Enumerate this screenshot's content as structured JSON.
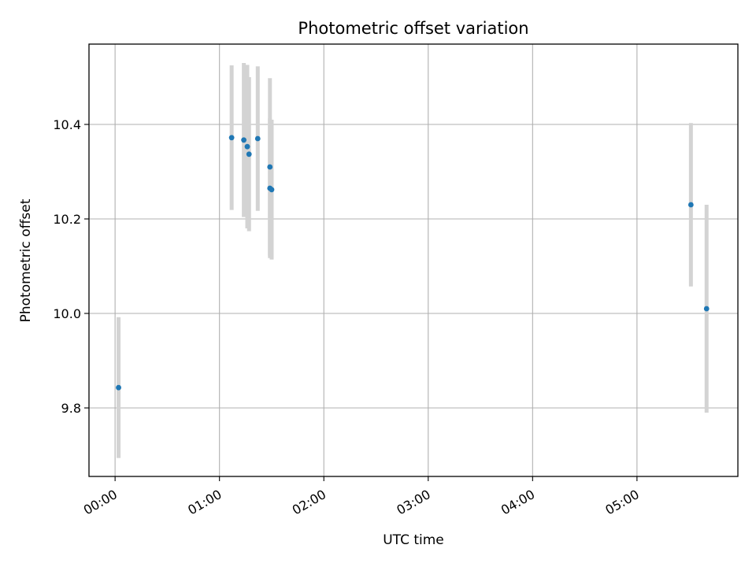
{
  "chart_data": {
    "type": "scatter",
    "title": "Photometric offset variation",
    "xlabel": "UTC time",
    "ylabel": "Photometric offset",
    "x_unit": "UTC time (HH:MM)",
    "xlim": [
      "23:45",
      "05:58"
    ],
    "ylim": [
      9.655,
      10.57
    ],
    "x_ticks": [
      "00:00",
      "01:00",
      "02:00",
      "03:00",
      "04:00",
      "05:00"
    ],
    "y_ticks": [
      9.8,
      10.0,
      10.2,
      10.4
    ],
    "y_tick_labels": [
      "9.8",
      "10.0",
      "10.2",
      "10.4"
    ],
    "grid": true,
    "point_color": "#1f77b4",
    "errorbar_color": "#d3d3d3",
    "points": [
      {
        "x": "00:02",
        "y": 9.843,
        "err": 0.149
      },
      {
        "x": "01:07",
        "y": 10.372,
        "err": 0.153
      },
      {
        "x": "01:14",
        "y": 10.367,
        "err": 0.163
      },
      {
        "x": "01:16",
        "y": 10.353,
        "err": 0.173
      },
      {
        "x": "01:17",
        "y": 10.337,
        "err": 0.163
      },
      {
        "x": "01:22",
        "y": 10.37,
        "err": 0.153
      },
      {
        "x": "01:29",
        "y": 10.31,
        "err": 0.188
      },
      {
        "x": "01:29",
        "y": 10.265,
        "err": 0.148
      },
      {
        "x": "01:30",
        "y": 10.262,
        "err": 0.148
      },
      {
        "x": "05:31",
        "y": 10.23,
        "err": 0.173
      },
      {
        "x": "05:40",
        "y": 10.01,
        "err": 0.22
      }
    ]
  }
}
